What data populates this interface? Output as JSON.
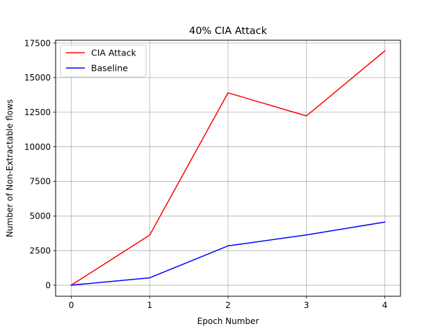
{
  "chart_data": {
    "type": "line",
    "title": "40% CIA Attack",
    "xlabel": "Epoch Number",
    "ylabel": "Number of Non-Extractable flows",
    "x": [
      0,
      1,
      2,
      3,
      4
    ],
    "xticks": [
      "0",
      "1",
      "2",
      "3",
      "4"
    ],
    "xlim": [
      -0.2,
      4.2
    ],
    "ylim": [
      -800,
      17700
    ],
    "yticks": [
      0,
      2500,
      5000,
      7500,
      10000,
      12500,
      15000,
      17500
    ],
    "ytick_labels": [
      "0",
      "2500",
      "5000",
      "7500",
      "10000",
      "12500",
      "15000",
      "17500"
    ],
    "grid": true,
    "legend_position": "top-left",
    "series": [
      {
        "name": "CIA Attack",
        "color": "#ff0000",
        "values": [
          0,
          3620,
          13900,
          12230,
          16930
        ]
      },
      {
        "name": "Baseline",
        "color": "#0000ff",
        "values": [
          0,
          530,
          2840,
          3630,
          4560
        ]
      }
    ]
  }
}
